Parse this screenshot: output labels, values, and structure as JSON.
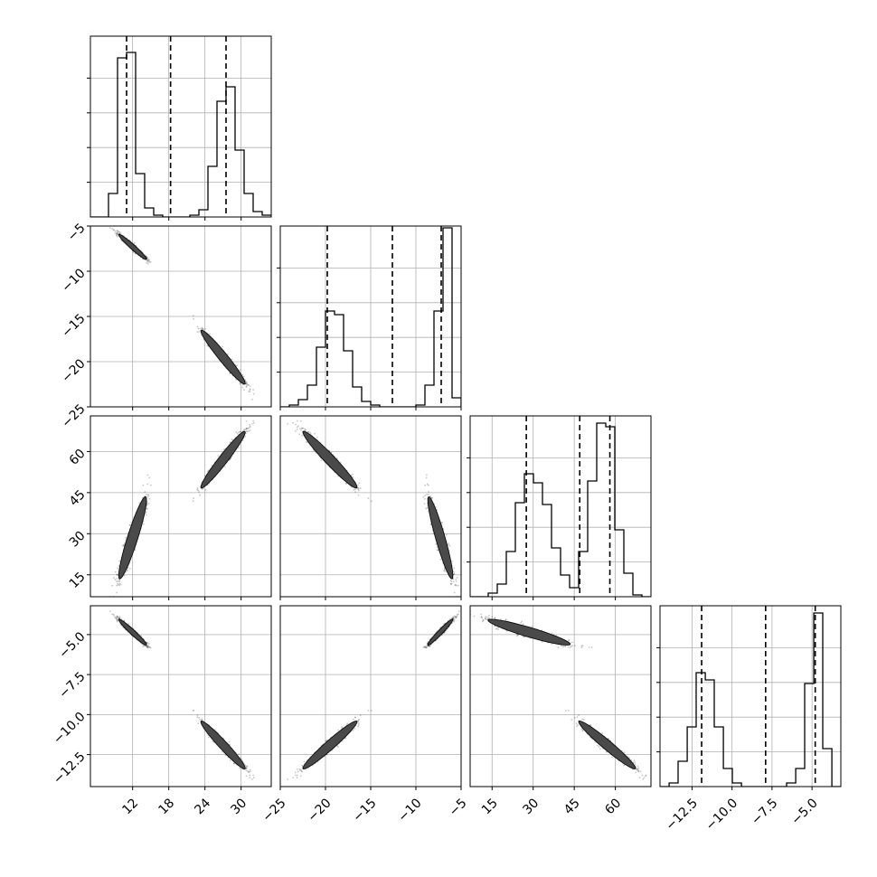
{
  "chart_data": {
    "type": "corner",
    "params": [
      {
        "name": "",
        "range": [
          5,
          35
        ],
        "ticks": [
          12,
          18,
          24,
          30
        ],
        "tick_labels": [
          "12",
          "18",
          "24",
          "30"
        ]
      },
      {
        "name": "",
        "range": [
          -25,
          -5
        ],
        "ticks": [
          -25,
          -20,
          -15,
          -10,
          -5
        ],
        "tick_labels": [
          "−25",
          "−20",
          "−15",
          "−10",
          "−5"
        ]
      },
      {
        "name": "",
        "range": [
          7,
          73
        ],
        "ticks": [
          15,
          30,
          45,
          60
        ],
        "tick_labels": [
          "15",
          "30",
          "45",
          "60"
        ]
      },
      {
        "name": "",
        "range": [
          -14.5,
          -3.2
        ],
        "ticks": [
          -12.5,
          -10.0,
          -7.5,
          -5.0
        ],
        "tick_labels": [
          "−12.5",
          "−10.0",
          "−7.5",
          "−5.0"
        ]
      }
    ],
    "quantiles": [
      [
        11.0,
        18.3,
        27.5
      ],
      [
        -19.8,
        -12.6,
        -7.2
      ],
      [
        27.5,
        47.0,
        58.0
      ],
      [
        -11.9,
        -7.9,
        -4.8
      ]
    ],
    "modes": [
      {
        "weight": 0.5,
        "mean": [
          12.0,
          -7.3,
          28.5,
          -4.85
        ],
        "sd": [
          1.0,
          0.6,
          6.5,
          0.35
        ]
      },
      {
        "weight": 0.5,
        "mean": [
          27.0,
          -19.5,
          57.0,
          -11.9
        ],
        "sd": [
          1.6,
          1.3,
          4.5,
          0.65
        ]
      }
    ],
    "histograms": [
      {
        "edges": [
          5,
          6.5,
          8,
          9.5,
          11,
          12.5,
          14,
          15.5,
          17,
          18.5,
          20,
          21.5,
          23,
          24.5,
          26,
          27.5,
          29,
          30.5,
          32,
          33.5,
          35
        ],
        "counts": [
          0,
          0,
          0.13,
          0.88,
          0.91,
          0.24,
          0.05,
          0.01,
          0,
          0,
          0,
          0.01,
          0.04,
          0.28,
          0.64,
          0.72,
          0.37,
          0.13,
          0.03,
          0.01
        ]
      },
      {
        "edges": [
          -25,
          -24,
          -23,
          -22,
          -21,
          -20,
          -19,
          -18,
          -17,
          -16,
          -15,
          -14,
          -13,
          -12,
          -11,
          -10,
          -9,
          -8,
          -7,
          -6,
          -5
        ],
        "counts": [
          0,
          0.01,
          0.04,
          0.12,
          0.33,
          0.53,
          0.51,
          0.31,
          0.11,
          0.03,
          0.01,
          0,
          0,
          0,
          0,
          0.01,
          0.12,
          0.53,
          0.99,
          0.05
        ]
      },
      {
        "edges": [
          7,
          10.3,
          13.6,
          16.9,
          20.2,
          23.5,
          26.8,
          30.1,
          33.4,
          36.7,
          40,
          43.3,
          46.6,
          49.9,
          53.2,
          56.5,
          59.8,
          63.1,
          66.4,
          69.7,
          73
        ],
        "counts": [
          0,
          0,
          0.02,
          0.07,
          0.25,
          0.52,
          0.68,
          0.63,
          0.51,
          0.27,
          0.12,
          0.05,
          0.25,
          0.64,
          0.96,
          0.94,
          0.37,
          0.13,
          0.01,
          0
        ]
      },
      {
        "edges": [
          -14.5,
          -13.93,
          -13.37,
          -12.8,
          -12.24,
          -11.67,
          -11.11,
          -10.54,
          -9.98,
          -9.41,
          -8.85,
          -8.28,
          -7.72,
          -7.15,
          -6.59,
          -6.02,
          -5.46,
          -4.89,
          -4.33,
          -3.76,
          -3.2
        ],
        "counts": [
          0,
          0.02,
          0.14,
          0.33,
          0.63,
          0.59,
          0.33,
          0.1,
          0.02,
          0,
          0,
          0,
          0,
          0,
          0.02,
          0.1,
          0.57,
          0.96,
          0.21,
          0
        ]
      }
    ],
    "x_tick_rotation": 45,
    "y_tick_rotation": 45,
    "grid": true,
    "colors": {
      "hist": "#000000",
      "contour_line": "#000000",
      "scatter": "#000000",
      "quantile_line": "#000000"
    }
  }
}
